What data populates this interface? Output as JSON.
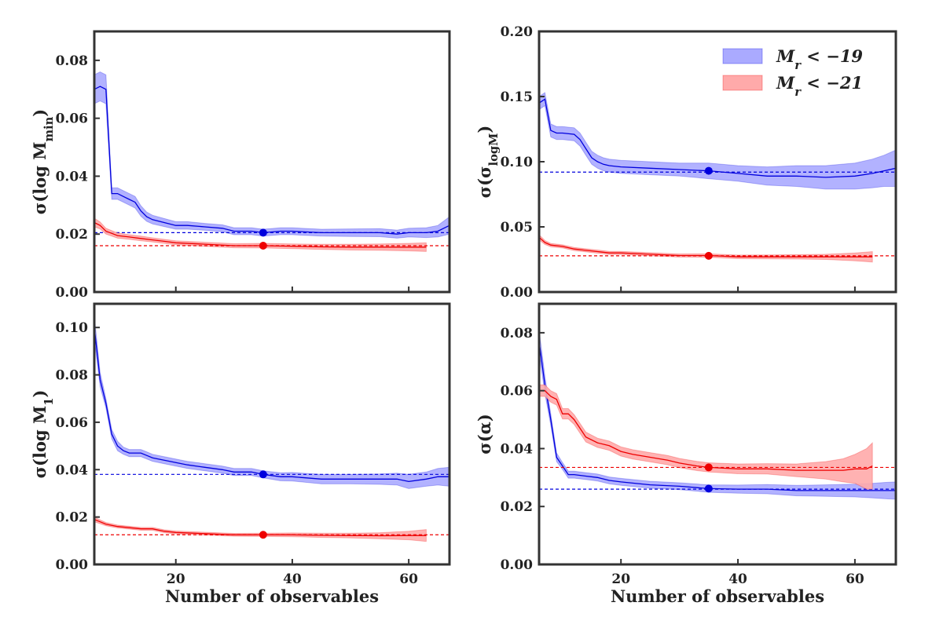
{
  "figure": {
    "legend": [
      {
        "label": "M_r < −19",
        "color": "#0000dd",
        "fill": "#aaaaff"
      },
      {
        "label": "M_r < −21",
        "color": "#ee0000",
        "fill": "#ffaaaa"
      }
    ]
  },
  "chart_data": [
    {
      "type": "line",
      "panel": "top-left",
      "ylabel": "σ(log M_min)",
      "xlabel": "",
      "xlim": [
        6,
        67
      ],
      "ylim": [
        0,
        0.09
      ],
      "xticks": [
        20,
        40,
        60
      ],
      "xtick_labels": [],
      "yticks": [
        0,
        0.02,
        0.04,
        0.06,
        0.08
      ],
      "ytick_labels": [
        "0.00",
        "0.02",
        "0.04",
        "0.06",
        "0.08"
      ],
      "series": [
        {
          "name": "M_r < −19",
          "x": [
            6,
            7,
            8,
            9,
            10,
            11,
            12,
            13,
            14,
            15,
            16,
            18,
            20,
            22,
            25,
            28,
            30,
            33,
            35,
            38,
            40,
            45,
            50,
            55,
            58,
            60,
            63,
            65,
            67
          ],
          "y": [
            0.07,
            0.071,
            0.07,
            0.034,
            0.034,
            0.033,
            0.032,
            0.031,
            0.028,
            0.026,
            0.025,
            0.024,
            0.023,
            0.023,
            0.0225,
            0.022,
            0.021,
            0.021,
            0.0205,
            0.021,
            0.021,
            0.0205,
            0.0205,
            0.0205,
            0.02,
            0.0205,
            0.0205,
            0.021,
            0.023
          ],
          "err": [
            0.005,
            0.005,
            0.005,
            0.002,
            0.002,
            0.002,
            0.002,
            0.002,
            0.0018,
            0.0016,
            0.0015,
            0.0014,
            0.0013,
            0.0013,
            0.0012,
            0.0012,
            0.0012,
            0.0012,
            0.0012,
            0.0012,
            0.0012,
            0.0012,
            0.0013,
            0.0014,
            0.0014,
            0.0015,
            0.0017,
            0.002,
            0.003
          ],
          "reference": 0.0205,
          "marker": {
            "x": 35,
            "y": 0.0205
          }
        },
        {
          "name": "M_r < −21",
          "x": [
            6,
            7,
            8,
            10,
            12,
            14,
            16,
            18,
            20,
            25,
            30,
            35,
            40,
            45,
            50,
            55,
            60,
            63
          ],
          "y": [
            0.024,
            0.023,
            0.021,
            0.0195,
            0.019,
            0.0185,
            0.018,
            0.0175,
            0.017,
            0.0165,
            0.016,
            0.016,
            0.0158,
            0.0156,
            0.0155,
            0.0155,
            0.0155,
            0.0155
          ],
          "err": [
            0.0015,
            0.0012,
            0.001,
            0.0009,
            0.0008,
            0.0008,
            0.0007,
            0.0007,
            0.0007,
            0.0007,
            0.0007,
            0.0008,
            0.0008,
            0.0009,
            0.001,
            0.0011,
            0.0013,
            0.0015
          ],
          "reference": 0.016,
          "marker": {
            "x": 35,
            "y": 0.016
          }
        }
      ]
    },
    {
      "type": "line",
      "panel": "top-right",
      "ylabel": "σ(σ_logM)",
      "xlabel": "",
      "xlim": [
        6,
        67
      ],
      "ylim": [
        0,
        0.2
      ],
      "xticks": [
        20,
        40,
        60
      ],
      "xtick_labels": [],
      "yticks": [
        0,
        0.05,
        0.1,
        0.15,
        0.2
      ],
      "ytick_labels": [
        "0.00",
        "0.05",
        "0.10",
        "0.15",
        "0.20"
      ],
      "series": [
        {
          "name": "M_r < −19",
          "x": [
            6,
            7,
            8,
            9,
            10,
            12,
            13,
            14,
            15,
            16,
            17,
            18,
            20,
            25,
            30,
            35,
            40,
            45,
            50,
            55,
            60,
            63,
            65,
            67
          ],
          "y": [
            0.145,
            0.148,
            0.124,
            0.122,
            0.122,
            0.121,
            0.117,
            0.11,
            0.103,
            0.1,
            0.098,
            0.097,
            0.096,
            0.095,
            0.094,
            0.093,
            0.091,
            0.089,
            0.089,
            0.088,
            0.089,
            0.091,
            0.093,
            0.095
          ],
          "err": [
            0.005,
            0.005,
            0.005,
            0.005,
            0.005,
            0.005,
            0.005,
            0.005,
            0.005,
            0.005,
            0.005,
            0.005,
            0.005,
            0.005,
            0.005,
            0.006,
            0.006,
            0.007,
            0.008,
            0.009,
            0.01,
            0.011,
            0.012,
            0.014
          ],
          "reference": 0.092,
          "marker": {
            "x": 35,
            "y": 0.093
          }
        },
        {
          "name": "M_r < −21",
          "x": [
            6,
            7,
            8,
            10,
            12,
            14,
            16,
            18,
            20,
            25,
            30,
            35,
            40,
            45,
            50,
            55,
            60,
            63
          ],
          "y": [
            0.042,
            0.038,
            0.036,
            0.035,
            0.033,
            0.032,
            0.031,
            0.03,
            0.03,
            0.029,
            0.028,
            0.028,
            0.027,
            0.027,
            0.027,
            0.027,
            0.027,
            0.027
          ],
          "err": [
            0.002,
            0.0015,
            0.0013,
            0.0012,
            0.0012,
            0.0012,
            0.0012,
            0.0012,
            0.0012,
            0.0012,
            0.0012,
            0.0013,
            0.0014,
            0.0015,
            0.0017,
            0.002,
            0.003,
            0.004
          ],
          "reference": 0.0278,
          "marker": {
            "x": 35,
            "y": 0.0278
          }
        }
      ]
    },
    {
      "type": "line",
      "panel": "bottom-left",
      "ylabel": "σ(log M_1)",
      "xlabel": "Number of observables",
      "xlim": [
        6,
        67
      ],
      "ylim": [
        0,
        0.11
      ],
      "xticks": [
        20,
        40,
        60
      ],
      "xtick_labels": [
        "20",
        "40",
        "60"
      ],
      "yticks": [
        0,
        0.02,
        0.04,
        0.06,
        0.08,
        0.1
      ],
      "ytick_labels": [
        "0.00",
        "0.02",
        "0.04",
        "0.06",
        "0.08",
        "0.10"
      ],
      "series": [
        {
          "name": "M_r < −19",
          "x": [
            6,
            7,
            8,
            9,
            10,
            11,
            12,
            13,
            14,
            15,
            16,
            18,
            20,
            22,
            25,
            28,
            30,
            33,
            35,
            38,
            40,
            45,
            50,
            55,
            58,
            60,
            63,
            65,
            67
          ],
          "y": [
            0.1,
            0.078,
            0.068,
            0.055,
            0.05,
            0.048,
            0.047,
            0.047,
            0.047,
            0.046,
            0.045,
            0.044,
            0.043,
            0.042,
            0.041,
            0.04,
            0.039,
            0.039,
            0.038,
            0.037,
            0.037,
            0.036,
            0.036,
            0.036,
            0.036,
            0.035,
            0.036,
            0.037,
            0.037
          ],
          "err": [
            0.005,
            0.003,
            0.002,
            0.002,
            0.002,
            0.0015,
            0.0015,
            0.0015,
            0.0015,
            0.0015,
            0.0015,
            0.0015,
            0.0015,
            0.0015,
            0.0015,
            0.0015,
            0.0015,
            0.0015,
            0.0015,
            0.0017,
            0.0018,
            0.002,
            0.002,
            0.0022,
            0.0025,
            0.003,
            0.003,
            0.0035,
            0.004
          ],
          "reference": 0.038,
          "marker": {
            "x": 35,
            "y": 0.038
          }
        },
        {
          "name": "M_r < −21",
          "x": [
            6,
            7,
            8,
            10,
            12,
            14,
            16,
            18,
            20,
            25,
            30,
            35,
            40,
            45,
            50,
            55,
            60,
            63
          ],
          "y": [
            0.019,
            0.018,
            0.017,
            0.016,
            0.0155,
            0.015,
            0.015,
            0.014,
            0.0135,
            0.013,
            0.0125,
            0.0125,
            0.0125,
            0.0123,
            0.0122,
            0.0121,
            0.0122,
            0.0122
          ],
          "err": [
            0.001,
            0.0008,
            0.0007,
            0.0006,
            0.0006,
            0.0006,
            0.0006,
            0.0006,
            0.0006,
            0.0006,
            0.0006,
            0.0007,
            0.0008,
            0.0009,
            0.001,
            0.0013,
            0.0018,
            0.0025
          ],
          "reference": 0.0125,
          "marker": {
            "x": 35,
            "y": 0.0125
          }
        }
      ]
    },
    {
      "type": "line",
      "panel": "bottom-right",
      "ylabel": "σ(α)",
      "xlabel": "Number of observables",
      "xlim": [
        6,
        67
      ],
      "ylim": [
        0,
        0.09
      ],
      "xticks": [
        20,
        40,
        60
      ],
      "xtick_labels": [
        "20",
        "40",
        "60"
      ],
      "yticks": [
        0,
        0.02,
        0.04,
        0.06,
        0.08
      ],
      "ytick_labels": [
        "0.00",
        "0.02",
        "0.04",
        "0.06",
        "0.08"
      ],
      "series": [
        {
          "name": "M_r < −19",
          "x": [
            6,
            7,
            8,
            9,
            10,
            11,
            12,
            14,
            16,
            18,
            20,
            25,
            30,
            35,
            40,
            45,
            50,
            55,
            60,
            63,
            65,
            67
          ],
          "y": [
            0.077,
            0.062,
            0.05,
            0.037,
            0.034,
            0.031,
            0.031,
            0.0305,
            0.03,
            0.029,
            0.0285,
            0.0275,
            0.027,
            0.0262,
            0.026,
            0.026,
            0.0255,
            0.0255,
            0.0255,
            0.0255,
            0.0255,
            0.0255
          ],
          "err": [
            0.004,
            0.003,
            0.002,
            0.0015,
            0.0012,
            0.0012,
            0.0012,
            0.0012,
            0.0012,
            0.0012,
            0.0012,
            0.0012,
            0.0012,
            0.0013,
            0.0014,
            0.0016,
            0.0018,
            0.002,
            0.0022,
            0.0025,
            0.0028,
            0.003
          ],
          "reference": 0.026,
          "marker": {
            "x": 35,
            "y": 0.0262
          }
        },
        {
          "name": "M_r < −21",
          "x": [
            6,
            7,
            8,
            9,
            10,
            11,
            12,
            13,
            14,
            16,
            18,
            20,
            22,
            25,
            28,
            30,
            33,
            35,
            40,
            45,
            50,
            55,
            58,
            60,
            62,
            63
          ],
          "y": [
            0.06,
            0.06,
            0.058,
            0.057,
            0.052,
            0.052,
            0.05,
            0.047,
            0.044,
            0.042,
            0.041,
            0.039,
            0.038,
            0.037,
            0.036,
            0.035,
            0.034,
            0.0335,
            0.033,
            0.033,
            0.0325,
            0.0325,
            0.0325,
            0.033,
            0.033,
            0.034
          ],
          "err": [
            0.002,
            0.002,
            0.002,
            0.002,
            0.0018,
            0.0018,
            0.0017,
            0.0017,
            0.0017,
            0.0016,
            0.0016,
            0.0016,
            0.0016,
            0.0016,
            0.0016,
            0.0016,
            0.0016,
            0.0016,
            0.0017,
            0.0018,
            0.0022,
            0.003,
            0.004,
            0.005,
            0.007,
            0.008
          ],
          "reference": 0.0335,
          "marker": {
            "x": 35,
            "y": 0.0335
          }
        }
      ]
    }
  ]
}
